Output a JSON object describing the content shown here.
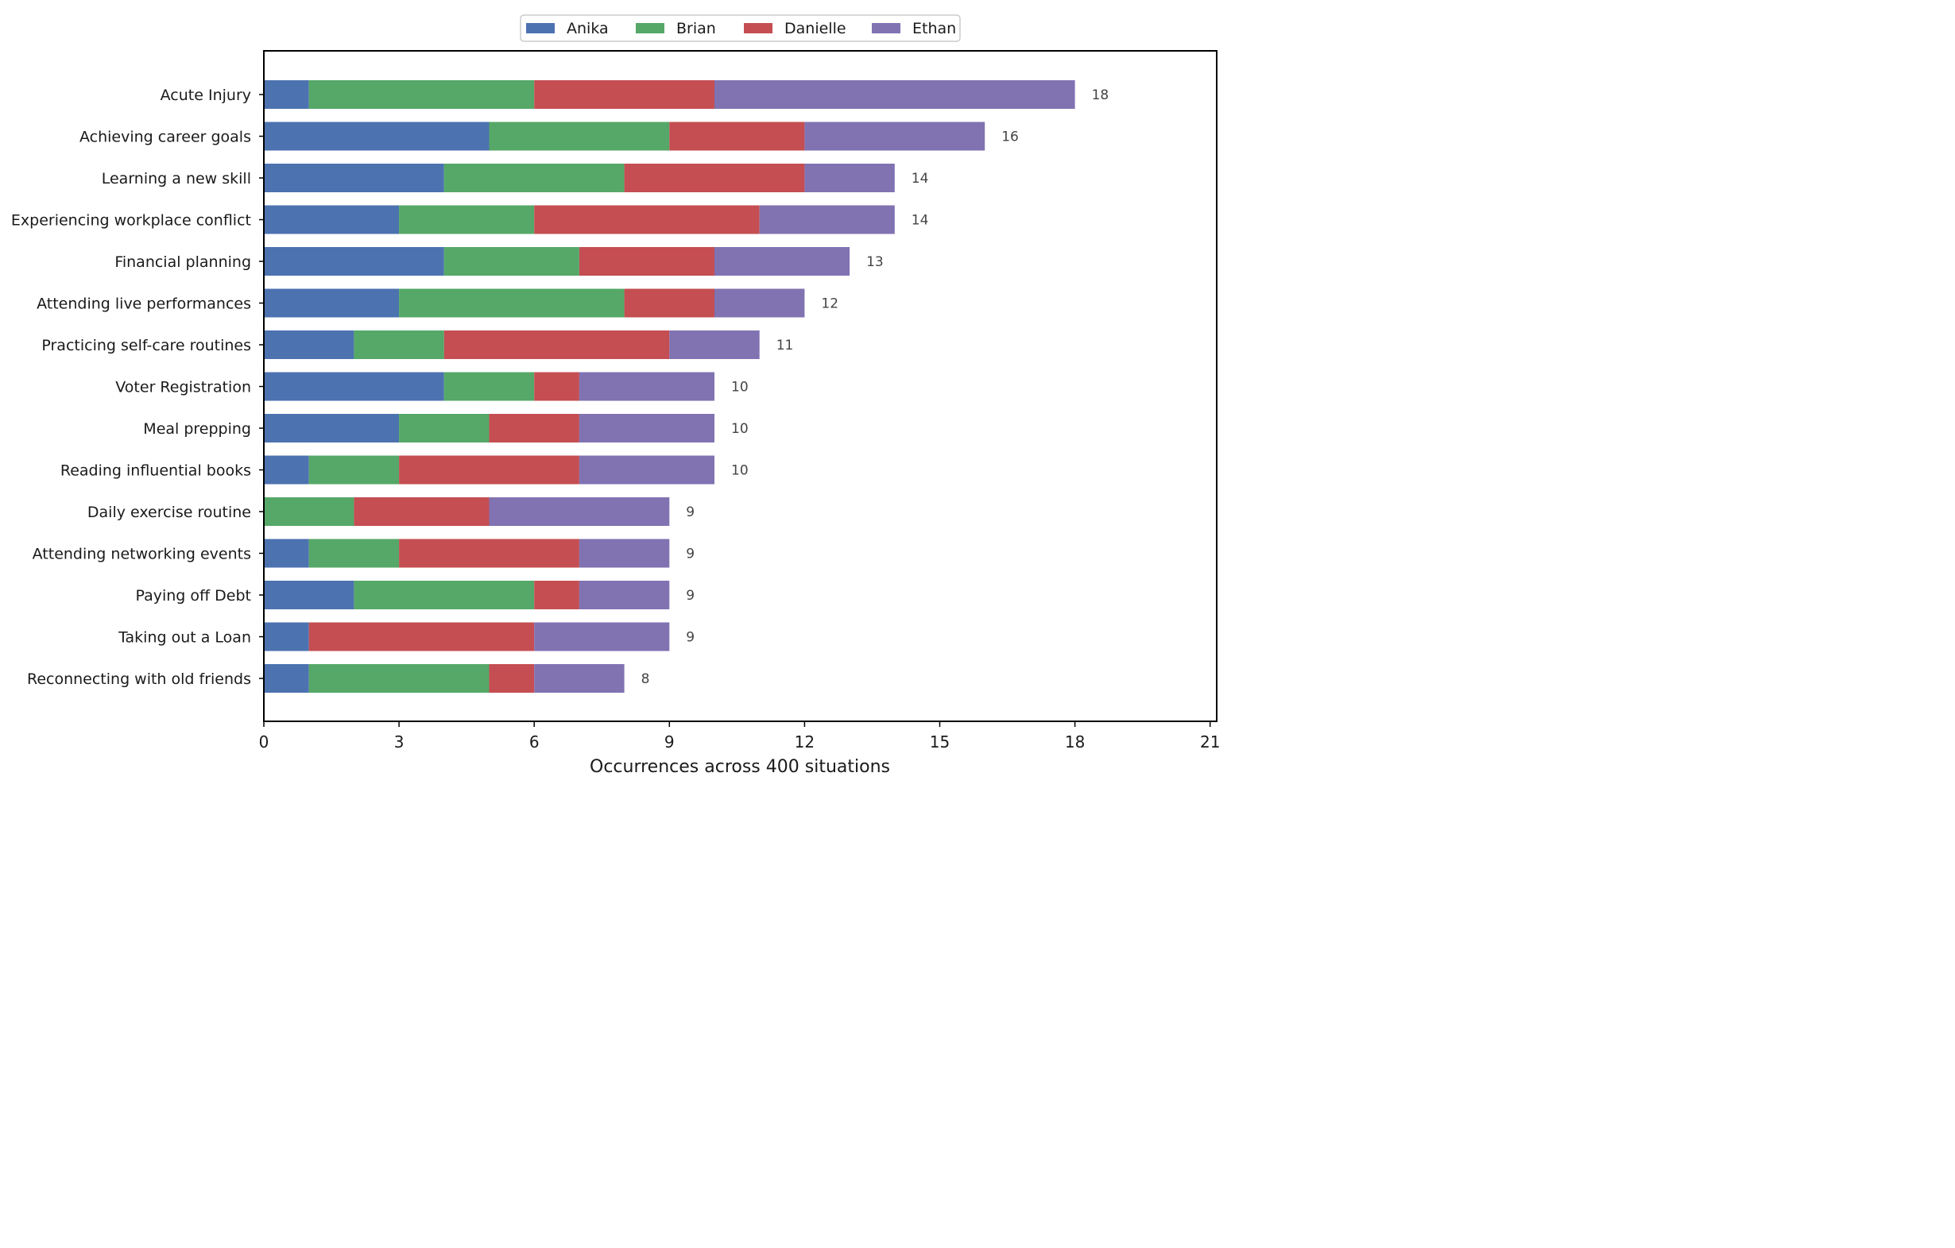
{
  "chart_data": {
    "type": "bar",
    "orientation": "horizontal",
    "stacked": true,
    "title": "",
    "xlabel": "Occurrences across 400 situations",
    "ylabel": "",
    "xlim": [
      0,
      21
    ],
    "xticks": [
      0,
      3,
      6,
      9,
      12,
      15,
      18,
      21
    ],
    "grid": false,
    "legend_position": "top-center",
    "categories": [
      "Acute Injury",
      "Achieving career goals",
      "Learning a new skill",
      "Experiencing workplace conflict",
      "Financial planning",
      "Attending live performances",
      "Practicing self-care routines",
      "Voter Registration",
      "Meal prepping",
      "Reading influential books",
      "Daily exercise routine",
      "Attending networking events",
      "Paying off Debt",
      "Taking out a Loan",
      "Reconnecting with old friends"
    ],
    "series": [
      {
        "name": "Anika",
        "color": "#4c72b0",
        "values": [
          1,
          5,
          4,
          3,
          4,
          3,
          2,
          4,
          3,
          1,
          0,
          1,
          2,
          1,
          1
        ]
      },
      {
        "name": "Brian",
        "color": "#55a868",
        "values": [
          5,
          4,
          4,
          3,
          3,
          5,
          2,
          2,
          2,
          2,
          2,
          2,
          4,
          0,
          4
        ]
      },
      {
        "name": "Danielle",
        "color": "#c44e52",
        "values": [
          4,
          3,
          4,
          5,
          3,
          2,
          5,
          1,
          2,
          4,
          3,
          4,
          1,
          5,
          1
        ]
      },
      {
        "name": "Ethan",
        "color": "#8172b2",
        "values": [
          8,
          4,
          2,
          3,
          3,
          2,
          2,
          3,
          3,
          3,
          4,
          2,
          2,
          3,
          2
        ]
      }
    ],
    "totals": [
      18,
      16,
      14,
      14,
      13,
      12,
      11,
      10,
      10,
      10,
      9,
      9,
      9,
      9,
      8
    ]
  }
}
